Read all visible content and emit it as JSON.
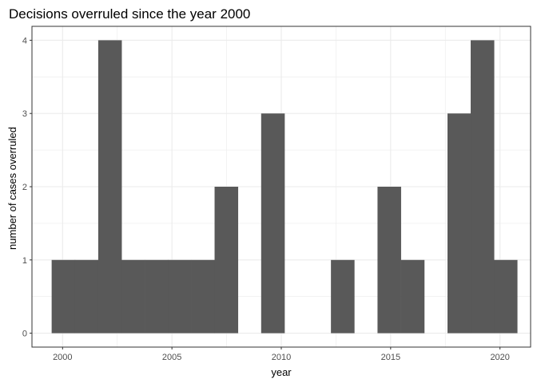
{
  "chart_data": {
    "type": "bar",
    "title": "Decisions overruled since the year 2000",
    "xlabel": "year",
    "ylabel": "number of cases overruled",
    "x_ticks": [
      "2000",
      "2005",
      "2010",
      "2015",
      "2020"
    ],
    "y_ticks": [
      "0",
      "1",
      "2",
      "3",
      "4"
    ],
    "xlim": [
      1998.6,
      2021.4
    ],
    "ylim": [
      -0.19,
      4.19
    ],
    "bin_width": 1.0644,
    "bins": [
      {
        "start": 1999.5,
        "value": 1
      },
      {
        "start": 2000.56,
        "value": 1
      },
      {
        "start": 2001.63,
        "value": 4
      },
      {
        "start": 2002.69,
        "value": 1
      },
      {
        "start": 2003.76,
        "value": 1
      },
      {
        "start": 2004.82,
        "value": 1
      },
      {
        "start": 2005.89,
        "value": 1
      },
      {
        "start": 2006.95,
        "value": 2
      },
      {
        "start": 2008.02,
        "value": 0
      },
      {
        "start": 2009.08,
        "value": 3
      },
      {
        "start": 2010.14,
        "value": 0
      },
      {
        "start": 2011.21,
        "value": 0
      },
      {
        "start": 2012.27,
        "value": 1
      },
      {
        "start": 2013.34,
        "value": 0
      },
      {
        "start": 2014.4,
        "value": 2
      },
      {
        "start": 2015.47,
        "value": 1
      },
      {
        "start": 2016.53,
        "value": 0
      },
      {
        "start": 2017.6,
        "value": 3
      },
      {
        "start": 2018.66,
        "value": 4
      },
      {
        "start": 2019.72,
        "value": 1
      }
    ],
    "grid": true,
    "bar_color": "#595959",
    "grid_color": "#ebebeb",
    "panel_border_color": "#333333"
  }
}
